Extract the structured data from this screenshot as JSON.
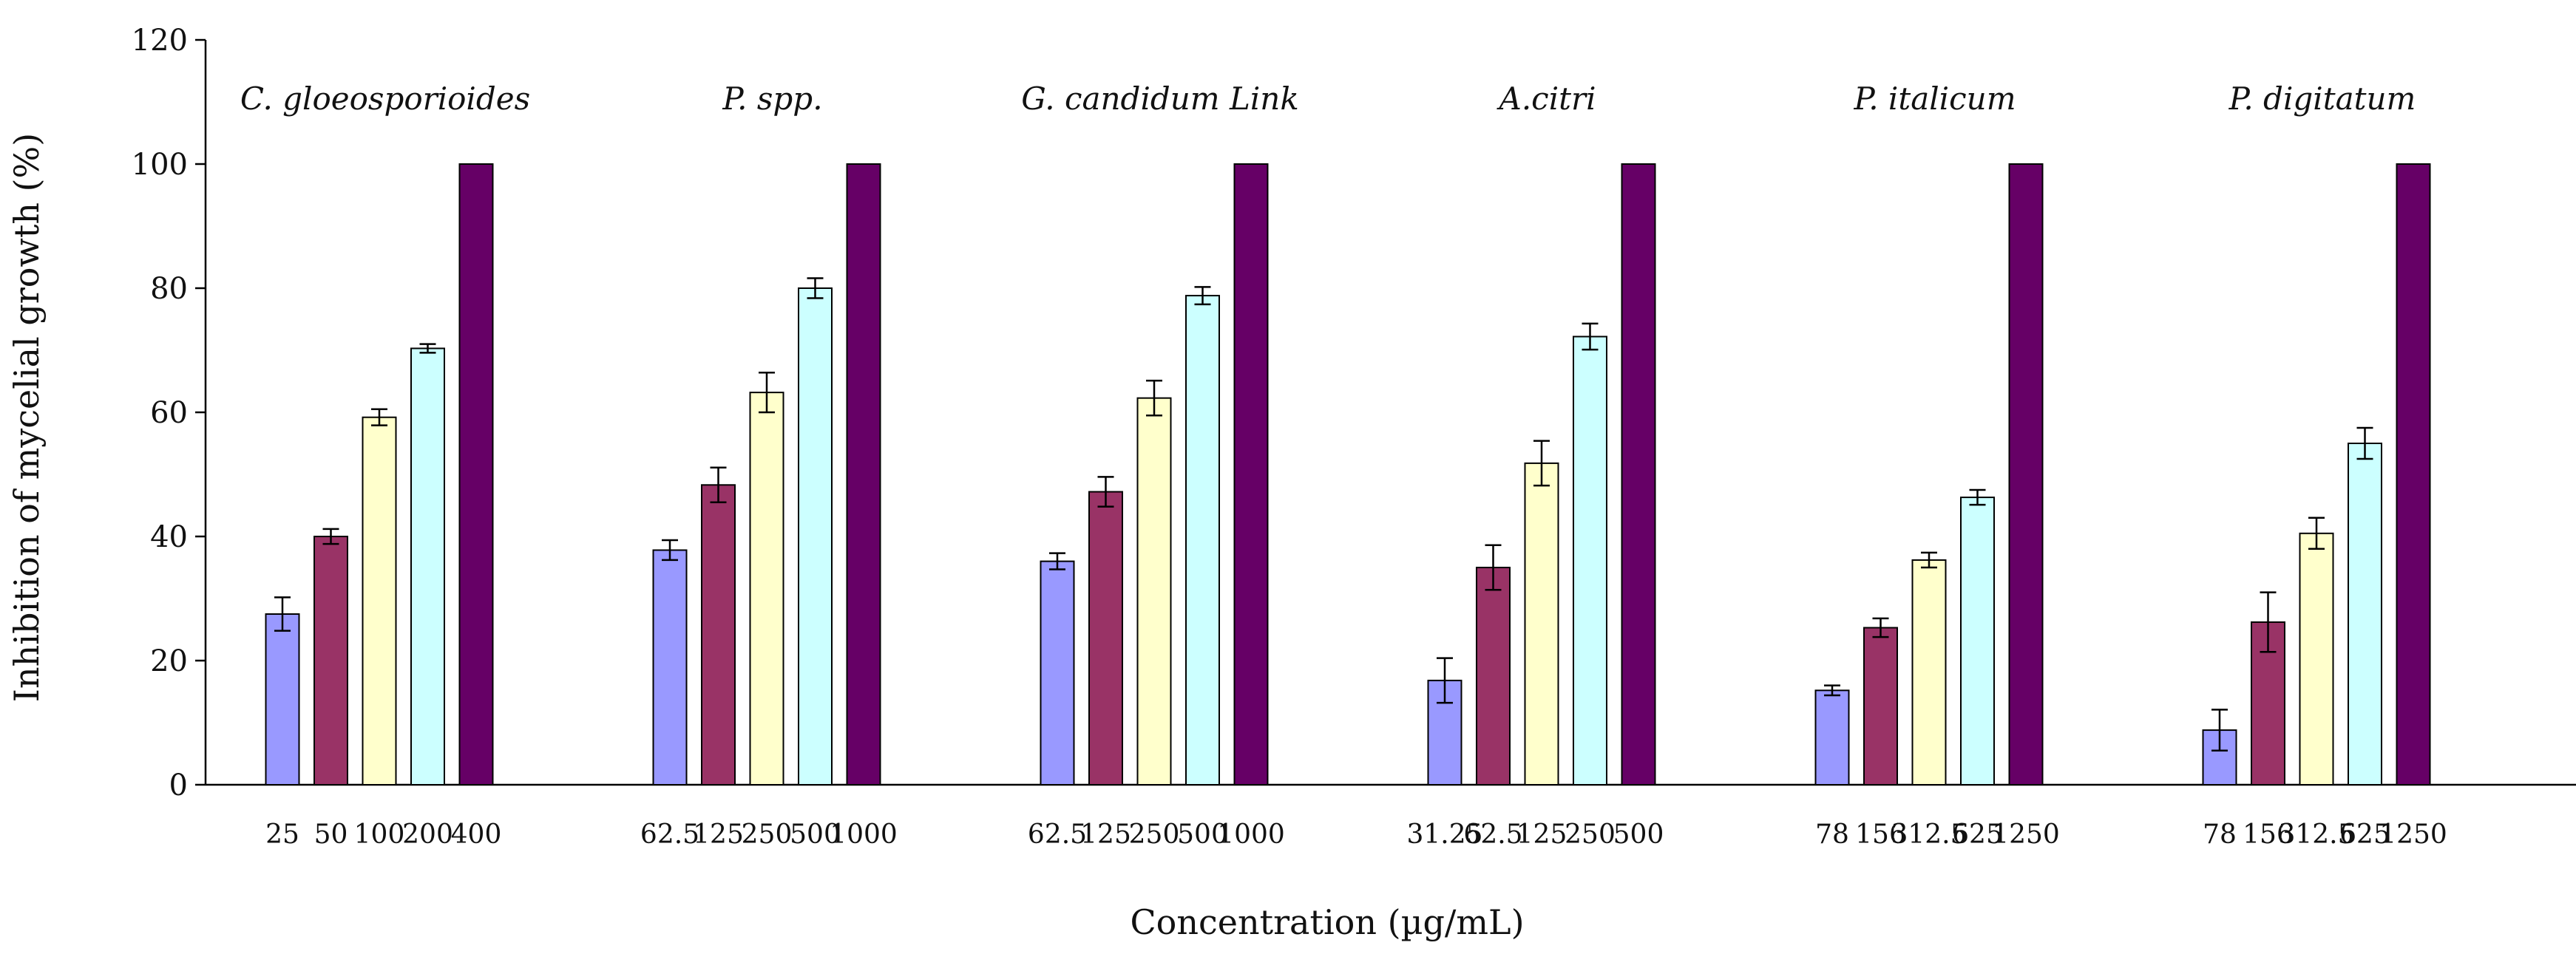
{
  "chart_data": {
    "type": "bar",
    "xlabel": "Concentration (µg/mL)",
    "ylabel": "Inhibition of mycelial growth (%)",
    "ylim": [
      0,
      120
    ],
    "yticks": [
      0,
      20,
      40,
      60,
      80,
      100,
      120
    ],
    "grid": false,
    "legend": "none",
    "series_colors": [
      "#9999ff",
      "#993366",
      "#ffffcc",
      "#ccffff",
      "#660066"
    ],
    "groups": [
      {
        "title": "C. gloeosporioides",
        "categories": [
          "25",
          "50",
          "100",
          "200",
          "400"
        ],
        "values": [
          27.5,
          40,
          59.2,
          70.3,
          100
        ],
        "errors": [
          2.7,
          1.2,
          1.3,
          0.7,
          0
        ]
      },
      {
        "title": "P. spp.",
        "categories": [
          "62.5",
          "125",
          "250",
          "500",
          "1000"
        ],
        "values": [
          37.8,
          48.3,
          63.2,
          80,
          100
        ],
        "errors": [
          1.6,
          2.8,
          3.2,
          1.6,
          0
        ]
      },
      {
        "title": "G. candidum Link",
        "categories": [
          "62.5",
          "125",
          "250",
          "500",
          "1000"
        ],
        "values": [
          36,
          47.2,
          62.3,
          78.8,
          100
        ],
        "errors": [
          1.3,
          2.4,
          2.8,
          1.4,
          0
        ]
      },
      {
        "title": "A.citri",
        "categories": [
          "31.25",
          "62.5",
          "125",
          "250",
          "500"
        ],
        "values": [
          16.8,
          35,
          51.8,
          72.2,
          100
        ],
        "errors": [
          3.6,
          3.6,
          3.6,
          2.1,
          0
        ]
      },
      {
        "title": "P. italicum",
        "categories": [
          "78",
          "156",
          "312.5",
          "625",
          "1250"
        ],
        "values": [
          15.2,
          25.3,
          36.2,
          46.3,
          100
        ],
        "errors": [
          0.8,
          1.5,
          1.2,
          1.2,
          0
        ]
      },
      {
        "title": "P. digitatum",
        "categories": [
          "78",
          "156",
          "312.5",
          "625",
          "1250"
        ],
        "values": [
          8.8,
          26.2,
          40.5,
          55,
          100
        ],
        "errors": [
          3.3,
          4.8,
          2.5,
          2.5,
          0
        ]
      }
    ]
  }
}
